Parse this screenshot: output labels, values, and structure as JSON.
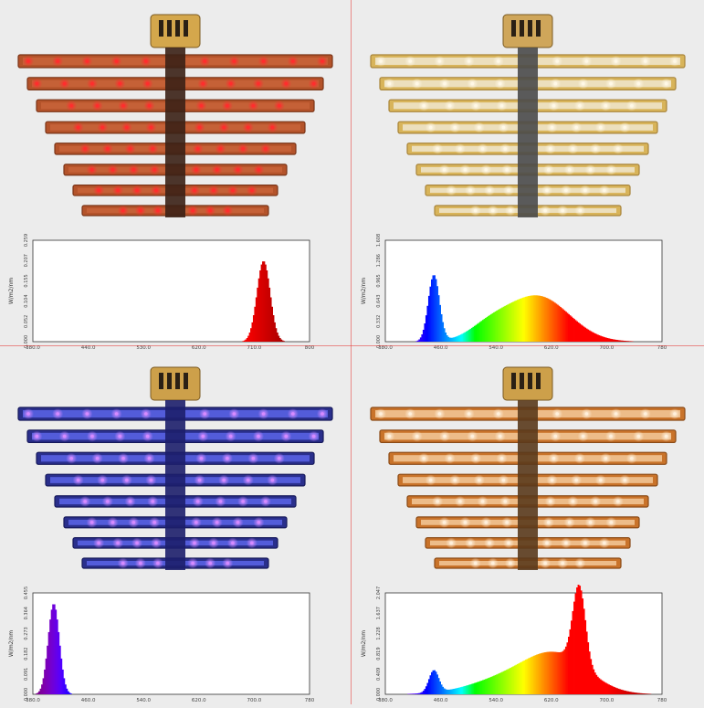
{
  "panels": [
    {
      "id": "red",
      "colors": {
        "frame": "#b4532a",
        "frame_dark": "#7a3417",
        "bar_face": "#c8643a",
        "led": "#ff2d2d",
        "spine": "#3b2116",
        "driver": "#d4a74c"
      },
      "chart_data": {
        "type": "area",
        "ylabel": "W/m2/nm",
        "x_ticks": [
          "380.0",
          "440.0",
          "530.0",
          "620.0",
          "710.0",
          "800"
        ],
        "xlim": [
          380,
          800
        ],
        "y_ticks": [
          "0.000",
          "0.052",
          "0.104",
          "0.155",
          "0.207",
          "0.259"
        ],
        "ylim": [
          0,
          0.259
        ],
        "series": [
          {
            "peaks": [
              {
                "center": 730,
                "height": 0.207,
                "width": 10
              }
            ]
          }
        ],
        "colormap": "spectral"
      }
    },
    {
      "id": "white",
      "colors": {
        "frame": "#d8b45a",
        "frame_dark": "#a8843a",
        "bar_face": "#f0e6cf",
        "led": "#fff8e6",
        "spine": "#4a4a4a",
        "driver": "#cfa65a"
      },
      "chart_data": {
        "type": "area",
        "ylabel": "W/m2/nm",
        "x_ticks": [
          "380.0",
          "460.0",
          "540.0",
          "620.0",
          "700.0",
          "780"
        ],
        "xlim": [
          380,
          780
        ],
        "y_ticks": [
          "0.000",
          "0.332",
          "0.643",
          "0.965",
          "1.286",
          "1.608"
        ],
        "ylim": [
          0,
          1.608
        ],
        "series": [
          {
            "peaks": [
              {
                "center": 450,
                "height": 1.06,
                "width": 8
              },
              {
                "center": 600,
                "height": 0.72,
                "width": 45
              },
              {
                "center": 530,
                "height": 0.2,
                "width": 30
              }
            ]
          }
        ],
        "colormap": "spectral"
      }
    },
    {
      "id": "blue",
      "colors": {
        "frame": "#2a2f8c",
        "frame_dark": "#16195a",
        "bar_face": "#5a64e8",
        "led": "#d68bff",
        "spine": "#1d1f6b",
        "driver": "#cda04a"
      },
      "chart_data": {
        "type": "area",
        "ylabel": "W/m2/nm",
        "x_ticks": [
          "380.0",
          "460.0",
          "540.0",
          "620.0",
          "700.0",
          "780"
        ],
        "xlim": [
          380,
          780
        ],
        "y_ticks": [
          "0.000",
          "0.091",
          "0.182",
          "0.273",
          "0.364",
          "0.455"
        ],
        "ylim": [
          0,
          0.455
        ],
        "series": [
          {
            "peaks": [
              {
                "center": 410,
                "height": 0.41,
                "width": 8
              }
            ]
          }
        ],
        "colormap": "spectral"
      }
    },
    {
      "id": "fullspectrum",
      "colors": {
        "frame": "#c9732a",
        "frame_dark": "#8a4a16",
        "bar_face": "#f3c99a",
        "led": "#fff0dc",
        "spine": "#5a3a1c",
        "driver": "#cda04a"
      },
      "chart_data": {
        "type": "area",
        "ylabel": "W/m2/nm",
        "x_ticks": [
          "380.0",
          "460.0",
          "540.0",
          "620.0",
          "700.0",
          "780"
        ],
        "xlim": [
          380,
          780
        ],
        "y_ticks": [
          "0.000",
          "0.409",
          "0.819",
          "1.228",
          "1.637",
          "2.047"
        ],
        "ylim": [
          0,
          2.047
        ],
        "series": [
          {
            "peaks": [
              {
                "center": 450,
                "height": 0.45,
                "width": 7
              },
              {
                "center": 660,
                "height": 1.6,
                "width": 9
              },
              {
                "center": 630,
                "height": 0.7,
                "width": 45
              },
              {
                "center": 560,
                "height": 0.32,
                "width": 55
              }
            ]
          }
        ],
        "colormap": "spectral"
      }
    }
  ]
}
